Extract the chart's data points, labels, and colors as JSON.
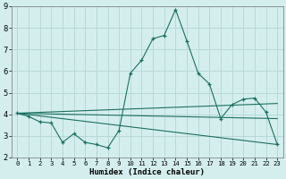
{
  "xlabel": "Humidex (Indice chaleur)",
  "background_color": "#d4eeee",
  "grid_color": "#b8d8d8",
  "line_color": "#1a7060",
  "xlim": [
    -0.5,
    23.5
  ],
  "ylim": [
    2,
    9
  ],
  "yticks": [
    2,
    3,
    4,
    5,
    6,
    7,
    8,
    9
  ],
  "xticks": [
    0,
    1,
    2,
    3,
    4,
    5,
    6,
    7,
    8,
    9,
    10,
    11,
    12,
    13,
    14,
    15,
    16,
    17,
    18,
    19,
    20,
    21,
    22,
    23
  ],
  "line1_x": [
    0,
    1,
    2,
    3,
    4,
    5,
    6,
    7,
    8,
    9,
    10,
    11,
    12,
    13,
    14,
    15,
    16,
    17,
    18,
    19,
    20,
    21,
    22,
    23
  ],
  "line1_y": [
    4.05,
    3.9,
    3.65,
    3.6,
    2.7,
    3.1,
    2.7,
    2.6,
    2.45,
    3.25,
    5.9,
    6.5,
    7.5,
    7.65,
    8.85,
    7.4,
    5.9,
    5.4,
    3.8,
    4.45,
    4.7,
    4.75,
    4.1,
    2.6
  ],
  "line2_x": [
    0,
    23
  ],
  "line2_y": [
    4.05,
    3.8
  ],
  "line3_x": [
    0,
    23
  ],
  "line3_y": [
    4.05,
    2.6
  ],
  "line4_x": [
    0,
    23
  ],
  "line4_y": [
    4.05,
    4.5
  ]
}
